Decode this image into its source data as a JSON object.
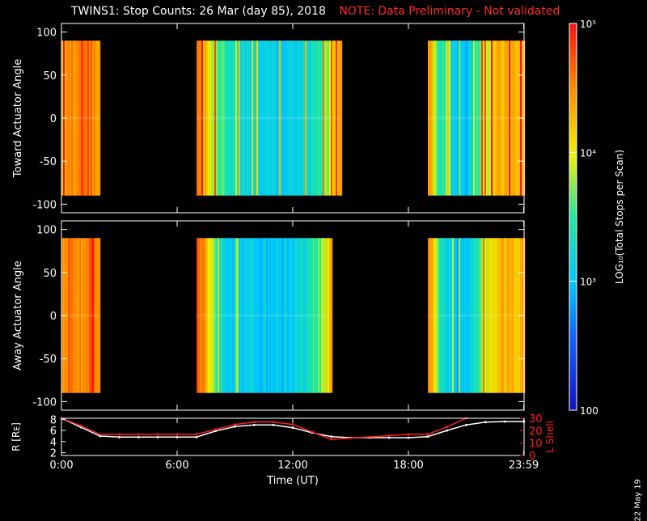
{
  "title": {
    "main": "TWINS1: Stop Counts: 26 Mar (day  85), 2018",
    "note": "NOTE: Data Preliminary - Not validated"
  },
  "datestamp": "22 May 19",
  "colors": {
    "background": "#000000",
    "axes": "#ffffff",
    "note": "#ff2a2a",
    "r_line": "#ffffff",
    "lshell_line": "#ff2020"
  },
  "chart_data": [
    {
      "type": "heatmap",
      "ylabel": "Toward Actuator Angle",
      "ylim": [
        -110,
        110
      ],
      "yticks": [
        100,
        50,
        0,
        -50,
        -100
      ],
      "xlim": [
        0,
        24
      ],
      "data_y_range": [
        -90,
        90
      ],
      "segments": [
        {
          "start": 0.0,
          "end": 2.0,
          "level": "high"
        },
        {
          "start": 7.0,
          "end": 14.5,
          "level": "mixed-low"
        },
        {
          "start": 19.0,
          "end": 24.0,
          "level": "mixed-low"
        }
      ],
      "profile": [
        [
          0.0,
          4.4
        ],
        [
          0.5,
          4.5
        ],
        [
          1.0,
          4.7
        ],
        [
          1.5,
          4.6
        ],
        [
          2.0,
          4.3
        ],
        [
          7.0,
          4.6
        ],
        [
          7.3,
          4.3
        ],
        [
          7.7,
          4.0
        ],
        [
          8.0,
          3.7
        ],
        [
          8.5,
          3.4
        ],
        [
          9.0,
          3.25
        ],
        [
          10.0,
          3.15
        ],
        [
          11.0,
          3.1
        ],
        [
          12.0,
          3.1
        ],
        [
          12.5,
          3.15
        ],
        [
          13.0,
          3.3
        ],
        [
          13.5,
          3.6
        ],
        [
          14.0,
          4.0
        ],
        [
          14.5,
          4.4
        ],
        [
          19.0,
          4.5
        ],
        [
          19.5,
          3.6
        ],
        [
          20.0,
          3.2
        ],
        [
          20.5,
          3.0
        ],
        [
          21.0,
          3.05
        ],
        [
          21.5,
          3.4
        ],
        [
          22.0,
          3.9
        ],
        [
          22.5,
          4.2
        ],
        [
          23.0,
          4.3
        ],
        [
          24.0,
          4.3
        ]
      ]
    },
    {
      "type": "heatmap",
      "ylabel": "Away Actuator Angle",
      "ylim": [
        -110,
        110
      ],
      "yticks": [
        100,
        50,
        0,
        -50,
        -100
      ],
      "xlim": [
        0,
        24
      ],
      "data_y_range": [
        -90,
        90
      ],
      "segments": [
        {
          "start": 0.0,
          "end": 2.0,
          "level": "high"
        },
        {
          "start": 7.0,
          "end": 14.0,
          "level": "mixed-low"
        },
        {
          "start": 19.0,
          "end": 24.0,
          "level": "mixed-low"
        }
      ],
      "profile": [
        [
          0.0,
          4.5
        ],
        [
          0.5,
          4.6
        ],
        [
          1.0,
          4.5
        ],
        [
          1.5,
          4.7
        ],
        [
          2.0,
          4.4
        ],
        [
          7.0,
          4.7
        ],
        [
          7.3,
          4.5
        ],
        [
          7.7,
          4.0
        ],
        [
          8.0,
          3.5
        ],
        [
          8.5,
          3.2
        ],
        [
          9.0,
          3.1
        ],
        [
          10.0,
          3.05
        ],
        [
          11.0,
          3.05
        ],
        [
          12.0,
          3.1
        ],
        [
          12.5,
          3.2
        ],
        [
          13.0,
          3.4
        ],
        [
          13.5,
          3.8
        ],
        [
          14.0,
          4.3
        ],
        [
          19.0,
          4.5
        ],
        [
          19.5,
          3.6
        ],
        [
          20.0,
          3.1
        ],
        [
          20.5,
          2.9
        ],
        [
          21.0,
          3.0
        ],
        [
          21.5,
          3.5
        ],
        [
          22.0,
          4.0
        ],
        [
          22.5,
          4.2
        ],
        [
          23.0,
          4.3
        ],
        [
          24.0,
          4.3
        ]
      ]
    },
    {
      "type": "line",
      "ylabel_left": "R [Rᴇ]",
      "ylabel_right": "L Shell",
      "xlabel": "Time (UT)",
      "xlim": [
        0,
        24
      ],
      "xtick_values": [
        0,
        6,
        12,
        18,
        23.983
      ],
      "xtick_labels": [
        "0:00",
        "6:00",
        "12:00",
        "18:00",
        "23:59"
      ],
      "ylim_left": [
        1.5,
        8.2
      ],
      "yticks_left": [
        8,
        6,
        4,
        2
      ],
      "ylim_right": [
        0,
        30
      ],
      "yticks_right": [
        30,
        20,
        10,
        0
      ],
      "series": [
        {
          "axis": "left",
          "color": "#ffffff",
          "x": [
            0,
            1,
            2,
            3,
            4,
            5,
            6,
            7,
            8,
            9,
            10,
            11,
            12,
            13,
            14,
            15,
            16,
            17,
            18,
            19,
            20,
            21,
            22,
            23,
            24
          ],
          "y": [
            8.2,
            6.6,
            5.0,
            4.8,
            4.8,
            4.8,
            4.8,
            4.8,
            5.9,
            6.7,
            7.0,
            7.0,
            6.5,
            5.6,
            4.9,
            4.7,
            4.7,
            4.7,
            4.7,
            4.9,
            6.0,
            7.0,
            7.5,
            7.6,
            7.6
          ]
        },
        {
          "axis": "right",
          "color": "#ff2020",
          "x": [
            0,
            1,
            2,
            3,
            4,
            5,
            6,
            7,
            8,
            9,
            10,
            11,
            12,
            13,
            14,
            15,
            16,
            17,
            18,
            19,
            20,
            21
          ],
          "y": [
            30,
            24,
            17,
            17,
            17,
            17,
            17,
            17,
            21,
            25,
            27,
            27,
            25,
            19,
            13,
            14,
            15,
            16,
            17,
            17,
            23,
            30
          ]
        }
      ]
    }
  ],
  "colorbar": {
    "label": "LOG₁₀(Total Stops per Scan)",
    "min": 100,
    "max": 100000,
    "tick_labels": [
      "10⁵",
      "10⁴",
      "10³",
      "100"
    ],
    "tick_values": [
      100000,
      10000,
      1000,
      100
    ]
  }
}
